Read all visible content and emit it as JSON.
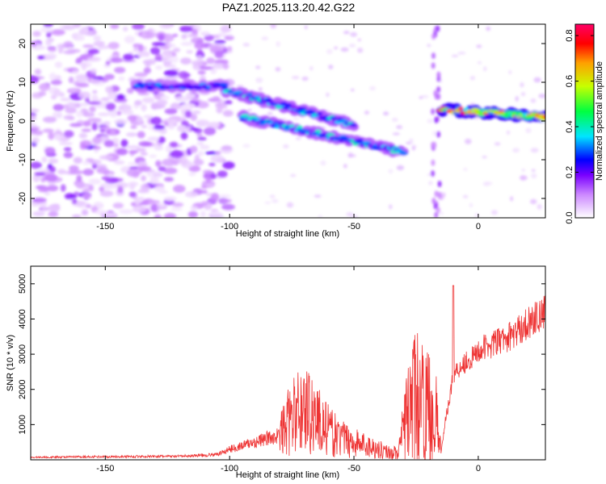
{
  "chart_data": [
    {
      "type": "heatmap",
      "title": "PAZ1.2025.113.20.42.G22",
      "xlabel": "Height of straight line (km)",
      "ylabel": "Frequency (Hz)",
      "xlim": [
        -180,
        27
      ],
      "ylim": [
        -25,
        25
      ],
      "xticks": [
        -150,
        -100,
        -50,
        0
      ],
      "yticks": [
        -20,
        -10,
        0,
        10,
        20
      ],
      "colorbar": {
        "label": "Normalized spectral amplitude",
        "range": [
          0,
          0.85
        ],
        "ticks": [
          "0.0",
          "0.2",
          "0.4",
          "0.6",
          "0.8"
        ],
        "colormap": [
          "#ffffff",
          "#cc88ff",
          "#7a00ff",
          "#0000ff",
          "#00e5ff",
          "#00ff40",
          "#c8ff00",
          "#ffa000",
          "#ff0000",
          "#ff0066"
        ]
      },
      "features": [
        {
          "x": [
            -138,
            -102
          ],
          "freq": [
            9,
            9
          ],
          "amp": 0.3
        },
        {
          "x": [
            -102,
            -50
          ],
          "freq": [
            8,
            -1
          ],
          "amp": 0.35
        },
        {
          "x": [
            -95,
            -30
          ],
          "freq": [
            1,
            -8
          ],
          "amp": 0.35
        },
        {
          "x": [
            -15,
            27
          ],
          "freq": [
            3,
            1
          ],
          "amp": 0.7
        }
      ]
    },
    {
      "type": "line",
      "xlabel": "Height of straight line (km)",
      "ylabel": "SNR (10 * v/v)",
      "xlim": [
        -180,
        27
      ],
      "ylim": [
        0,
        5500
      ],
      "xticks": [
        -150,
        -100,
        -50,
        0
      ],
      "yticks": [
        1000,
        2000,
        3000,
        4000,
        5000
      ],
      "line_color": "#ee3333",
      "series": [
        {
          "x": [
            -180,
            -150,
            -120,
            -105,
            -100,
            -90,
            -80,
            -75,
            -70,
            -65,
            -60,
            -55,
            -50,
            -45,
            -40,
            -35,
            -32,
            -30,
            -27,
            -25,
            -22,
            -20,
            -17,
            -15,
            -13,
            -10,
            -8,
            -5,
            -2,
            0,
            3,
            6,
            10,
            15,
            20,
            25,
            27
          ],
          "y": [
            70,
            90,
            100,
            150,
            300,
            500,
            700,
            1200,
            1500,
            1200,
            800,
            600,
            500,
            400,
            300,
            200,
            200,
            900,
            1600,
            1800,
            1500,
            1500,
            1200,
            200,
            1200,
            2400,
            2600,
            2800,
            2900,
            3100,
            3200,
            3300,
            3400,
            3600,
            3900,
            4100,
            4200
          ]
        }
      ]
    }
  ]
}
